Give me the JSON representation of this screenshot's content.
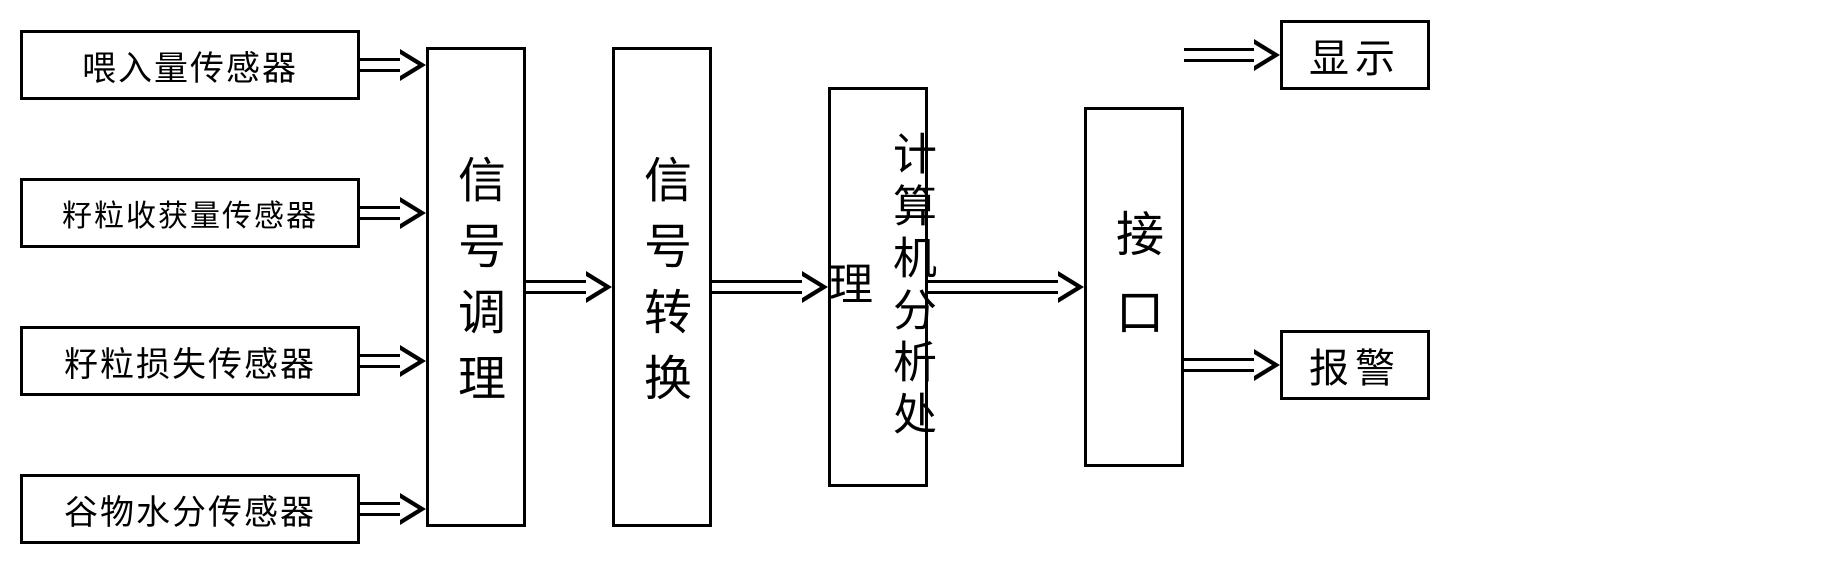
{
  "sensors": [
    {
      "label": "喂入量传感器",
      "small": false
    },
    {
      "label": "籽粒收获量传感器",
      "small": true
    },
    {
      "label": "籽粒损失传感器",
      "small": false
    },
    {
      "label": "谷物水分传感器",
      "small": false
    }
  ],
  "stages": {
    "s1": "信号调理",
    "s2": "信号转换",
    "s3": "计算机分析处理",
    "s4": "接口"
  },
  "outputs": {
    "o1": "显示",
    "o2": "报警"
  },
  "style": {
    "border_color": "#000000",
    "background": "#ffffff",
    "sensor_box_w": 340,
    "sensor_box_h": 70,
    "vbox_w": 100,
    "font_main": 48,
    "font_sensor": 34
  }
}
